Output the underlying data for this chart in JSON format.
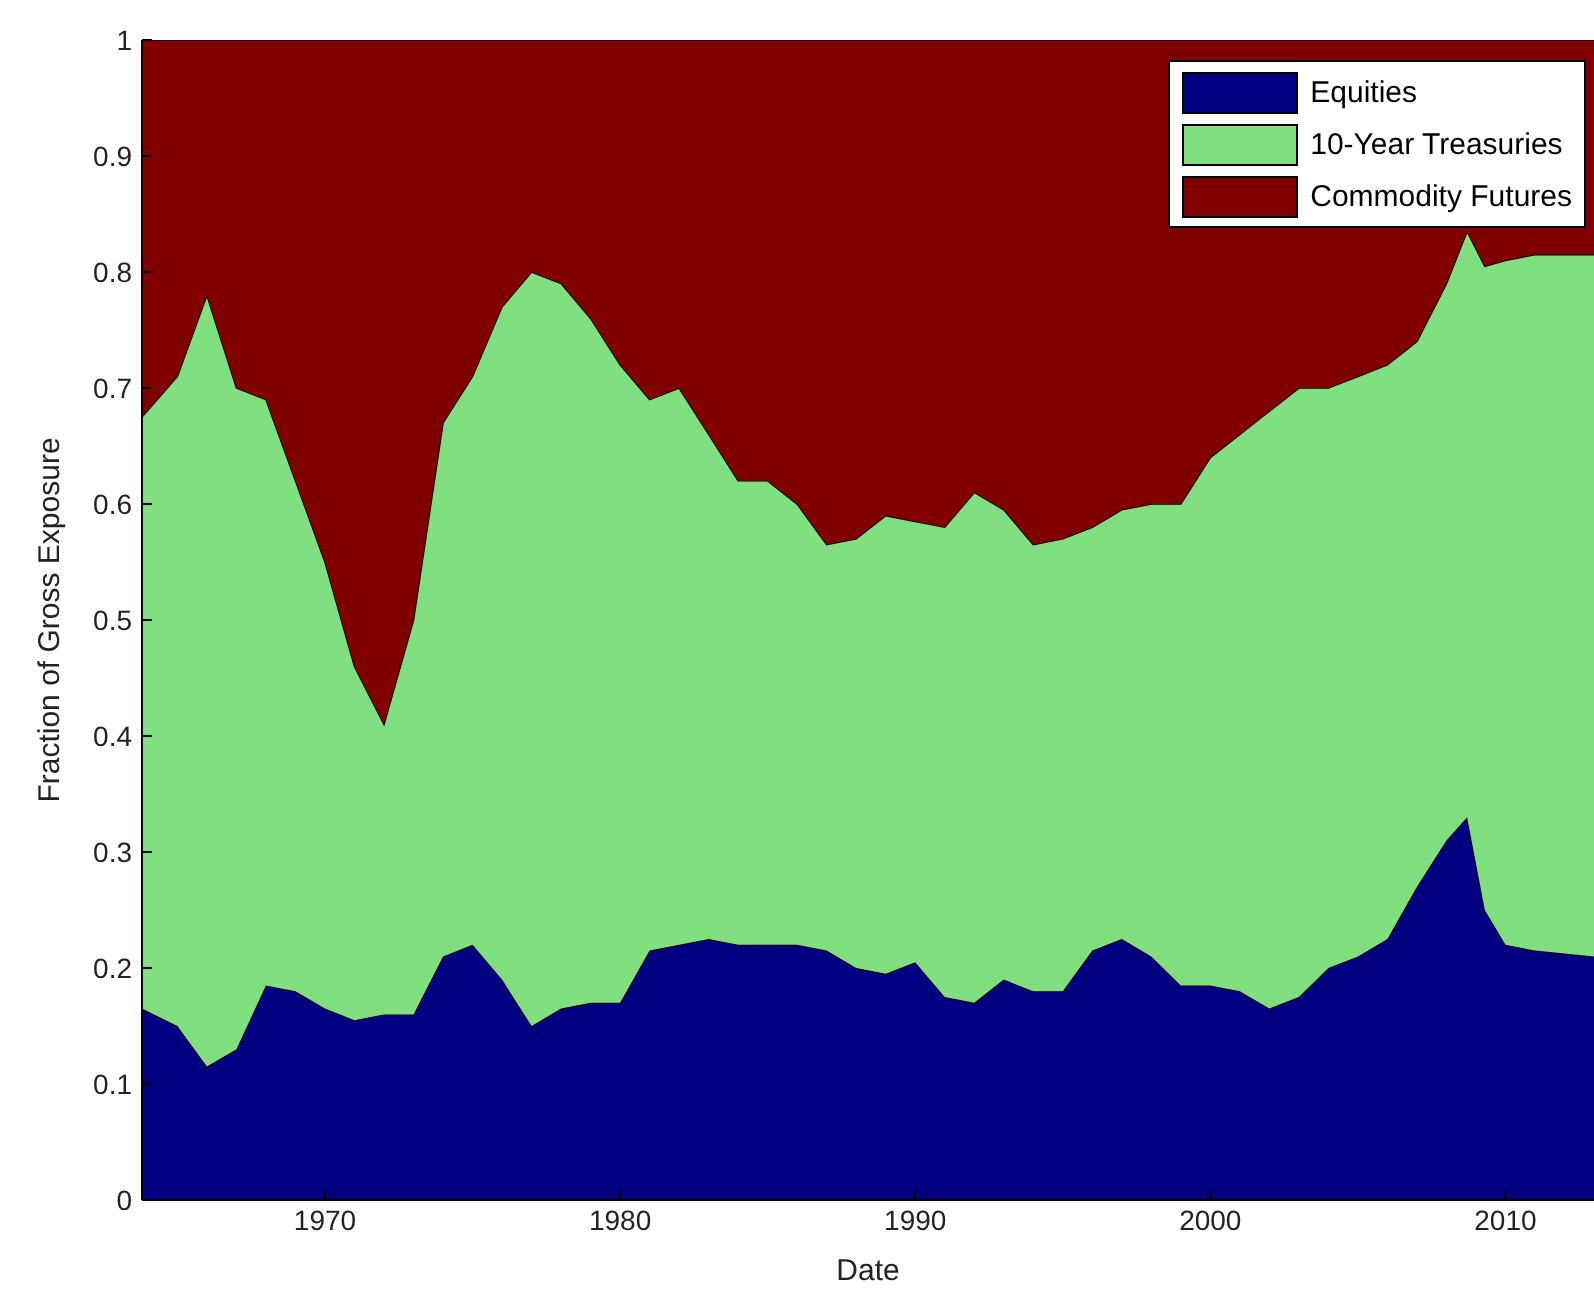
{
  "chart_data": {
    "type": "area",
    "stacked": true,
    "xlabel": "Date",
    "ylabel": "Fraction of Gross Exposure",
    "x": [
      1963.8,
      1965,
      1966,
      1967,
      1968,
      1969,
      1970,
      1971,
      1972,
      1973,
      1974,
      1975,
      1976,
      1977,
      1978,
      1979,
      1980,
      1981,
      1982,
      1983,
      1984,
      1985,
      1986,
      1987,
      1988,
      1989,
      1990,
      1991,
      1992,
      1993,
      1994,
      1995,
      1996,
      1997,
      1998,
      1999,
      2000,
      2001,
      2002,
      2003,
      2004,
      2005,
      2006,
      2007,
      2008,
      2008.7,
      2009.3,
      2010,
      2011,
      2013
    ],
    "series": [
      {
        "name": "Equities",
        "color": "#000080",
        "values": [
          0.165,
          0.15,
          0.115,
          0.13,
          0.185,
          0.18,
          0.165,
          0.155,
          0.16,
          0.16,
          0.21,
          0.22,
          0.19,
          0.15,
          0.165,
          0.17,
          0.17,
          0.215,
          0.22,
          0.225,
          0.22,
          0.22,
          0.22,
          0.215,
          0.2,
          0.195,
          0.205,
          0.175,
          0.17,
          0.19,
          0.18,
          0.18,
          0.215,
          0.225,
          0.21,
          0.185,
          0.185,
          0.18,
          0.165,
          0.175,
          0.2,
          0.21,
          0.225,
          0.27,
          0.31,
          0.33,
          0.25,
          0.22,
          0.215,
          0.21
        ]
      },
      {
        "name": "10-Year Treasuries",
        "color": "#80e080",
        "values": [
          0.51,
          0.56,
          0.665,
          0.57,
          0.505,
          0.44,
          0.385,
          0.305,
          0.25,
          0.34,
          0.46,
          0.49,
          0.58,
          0.65,
          0.625,
          0.59,
          0.55,
          0.475,
          0.48,
          0.435,
          0.4,
          0.4,
          0.38,
          0.35,
          0.37,
          0.395,
          0.38,
          0.405,
          0.44,
          0.405,
          0.385,
          0.39,
          0.365,
          0.37,
          0.39,
          0.415,
          0.455,
          0.48,
          0.515,
          0.525,
          0.5,
          0.5,
          0.495,
          0.47,
          0.48,
          0.505,
          0.555,
          0.59,
          0.6,
          0.605
        ]
      },
      {
        "name": "Commodity Futures",
        "color": "#800000",
        "values": [
          0.325,
          0.29,
          0.22,
          0.3,
          0.31,
          0.38,
          0.45,
          0.54,
          0.59,
          0.5,
          0.33,
          0.29,
          0.23,
          0.2,
          0.21,
          0.24,
          0.28,
          0.31,
          0.3,
          0.34,
          0.38,
          0.38,
          0.4,
          0.435,
          0.43,
          0.41,
          0.415,
          0.42,
          0.39,
          0.405,
          0.435,
          0.43,
          0.42,
          0.405,
          0.4,
          0.4,
          0.36,
          0.34,
          0.32,
          0.3,
          0.3,
          0.29,
          0.28,
          0.26,
          0.21,
          0.165,
          0.195,
          0.19,
          0.185,
          0.185
        ]
      }
    ],
    "xlim": [
      1963.8,
      2013
    ],
    "xticks": [
      1970,
      1980,
      1990,
      2000,
      2010
    ],
    "ylim": [
      0,
      1
    ],
    "yticks": [
      0,
      0.1,
      0.2,
      0.3,
      0.4,
      0.5,
      0.6,
      0.7,
      0.8,
      0.9,
      1
    ],
    "grid": false,
    "legend": "top right"
  }
}
